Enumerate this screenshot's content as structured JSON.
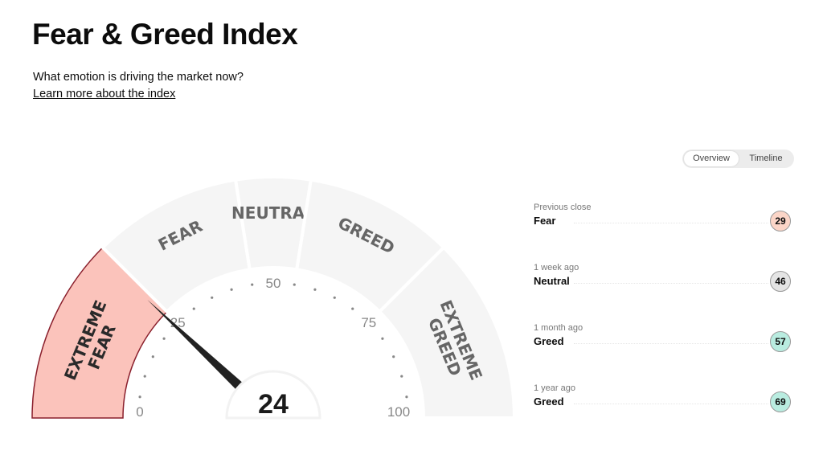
{
  "title": "Fear & Greed Index",
  "subtitle": "What emotion is driving the market now?",
  "learn_link": "Learn more about the index",
  "toggle": {
    "overview": "Overview",
    "timeline": "Timeline",
    "selected": "Overview"
  },
  "history": [
    {
      "label": "Previous close",
      "rating": "Fear",
      "value": "29",
      "color": "#fbd5c7"
    },
    {
      "label": "1 week ago",
      "rating": "Neutral",
      "value": "46",
      "color": "#e4e4e4"
    },
    {
      "label": "1 month ago",
      "rating": "Greed",
      "value": "57",
      "color": "#b9ece0"
    },
    {
      "label": "1 year ago",
      "rating": "Greed",
      "value": "69",
      "color": "#b9ece0"
    }
  ],
  "chart_data": {
    "type": "gauge",
    "value": 24,
    "value_label": "24",
    "range": [
      0,
      100
    ],
    "tick_labels": [
      "0",
      "25",
      "50",
      "75",
      "100"
    ],
    "segments": [
      {
        "name": "EXTREME FEAR",
        "lines": [
          "EXTREME",
          "FEAR"
        ],
        "from": 0,
        "to": 25,
        "active": true
      },
      {
        "name": "FEAR",
        "lines": [
          "FEAR"
        ],
        "from": 25,
        "to": 45,
        "active": false
      },
      {
        "name": "NEUTRAL",
        "lines": [
          "NEUTRAL"
        ],
        "from": 45,
        "to": 55,
        "active": false
      },
      {
        "name": "GREED",
        "lines": [
          "GREED"
        ],
        "from": 55,
        "to": 75,
        "active": false
      },
      {
        "name": "EXTREME GREED",
        "lines": [
          "EXTREME",
          "GREED"
        ],
        "from": 75,
        "to": 100,
        "active": false
      }
    ],
    "colors": {
      "active_fill": "#fbc3bb",
      "active_stroke": "#8a1f2c",
      "inactive_fill": "#f5f5f5",
      "needle": "#222222"
    }
  }
}
